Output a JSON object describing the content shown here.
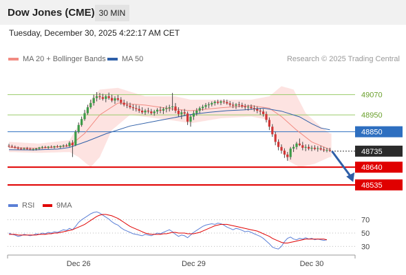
{
  "header": {
    "title": "Dow Jones (CME)",
    "timeframe": "30 MIN"
  },
  "timestamp": "Tuesday, December 30, 2025 4:22:17 AM CET",
  "legend": {
    "ma20_label": "MA 20 + Bollinger Bands",
    "ma50_label": "MA 50",
    "ma20_color": "#f28b82",
    "ma50_color": "#2e5fa8"
  },
  "credit": "Research © 2025 Trading Central",
  "rsi_legend": {
    "rsi_label": "RSI",
    "ma_label": "9MA",
    "rsi_color": "#5b7fd6",
    "ma_color": "#e00000"
  },
  "levels": [
    {
      "value": 49070,
      "label": "49070",
      "style": "green-line"
    },
    {
      "value": 48950,
      "label": "48950",
      "style": "green-line"
    },
    {
      "value": 48850,
      "label": "48850",
      "style": "blue-box"
    },
    {
      "value": 48735,
      "label": "48735",
      "style": "dark-box"
    },
    {
      "value": 48640,
      "label": "48640",
      "style": "red-box"
    },
    {
      "value": 48535,
      "label": "48535",
      "style": "red-box"
    }
  ],
  "chart_data": [
    {
      "type": "candlestick",
      "ylim": [
        48490,
        49150
      ],
      "x_labels": [
        "Dec 26",
        "Dec 29",
        "Dec 30"
      ],
      "ohlc": [
        [
          48767,
          48778,
          48757,
          48766
        ],
        [
          48764,
          48773,
          48755,
          48760
        ],
        [
          48760,
          48768,
          48750,
          48755
        ],
        [
          48755,
          48763,
          48744,
          48750
        ],
        [
          48750,
          48758,
          48742,
          48748
        ],
        [
          48749,
          48757,
          48741,
          48752
        ],
        [
          48751,
          48760,
          48743,
          48749
        ],
        [
          48748,
          48756,
          48740,
          48745
        ],
        [
          48745,
          48753,
          48738,
          48747
        ],
        [
          48746,
          48755,
          48739,
          48750
        ],
        [
          48750,
          48760,
          48743,
          48757
        ],
        [
          48757,
          48766,
          48749,
          48760
        ],
        [
          48759,
          48767,
          48751,
          48755
        ],
        [
          48756,
          48765,
          48748,
          48762
        ],
        [
          48761,
          48769,
          48753,
          48758
        ],
        [
          48758,
          48767,
          48750,
          48764
        ],
        [
          48763,
          48772,
          48755,
          48760
        ],
        [
          48760,
          48769,
          48752,
          48766
        ],
        [
          48766,
          48775,
          48757,
          48769
        ],
        [
          48769,
          48778,
          48760,
          48765
        ],
        [
          48765,
          48794,
          48760,
          48785
        ],
        [
          48785,
          48800,
          48700,
          48770
        ],
        [
          48770,
          48860,
          48765,
          48850
        ],
        [
          48850,
          48905,
          48840,
          48890
        ],
        [
          48890,
          48940,
          48880,
          48925
        ],
        [
          48925,
          48980,
          48915,
          48960
        ],
        [
          48960,
          49010,
          48950,
          48995
        ],
        [
          48995,
          49040,
          48985,
          49020
        ],
        [
          49020,
          49070,
          49005,
          49050
        ],
        [
          49050,
          49085,
          49030,
          49060
        ],
        [
          49060,
          49080,
          49040,
          49055
        ],
        [
          49055,
          49075,
          49035,
          49045
        ],
        [
          49045,
          49070,
          49025,
          49060
        ],
        [
          49060,
          49082,
          49040,
          49050
        ],
        [
          49050,
          49070,
          49025,
          49035
        ],
        [
          49035,
          49060,
          49015,
          49048
        ],
        [
          49048,
          49068,
          49030,
          49040
        ],
        [
          49040,
          49055,
          49010,
          49022
        ],
        [
          49022,
          49040,
          49000,
          49010
        ],
        [
          49010,
          49030,
          48990,
          49005
        ],
        [
          49005,
          49022,
          48985,
          48995
        ],
        [
          48995,
          49012,
          48975,
          48990
        ],
        [
          48990,
          49010,
          48970,
          48985
        ],
        [
          48985,
          49005,
          48962,
          48975
        ],
        [
          48975,
          48995,
          48955,
          48965
        ],
        [
          48965,
          48985,
          48950,
          48975
        ],
        [
          48975,
          48992,
          48958,
          48970
        ],
        [
          48970,
          48985,
          48950,
          48960
        ],
        [
          48960,
          48980,
          48945,
          48970
        ],
        [
          48970,
          48990,
          48955,
          48980
        ],
        [
          48980,
          48998,
          48960,
          48975
        ],
        [
          48975,
          48995,
          48955,
          48985
        ],
        [
          48985,
          49005,
          48965,
          48990
        ],
        [
          48990,
          49010,
          48970,
          48995
        ],
        [
          48995,
          49080,
          48975,
          49000
        ],
        [
          49000,
          49020,
          48960,
          48975
        ],
        [
          48975,
          48995,
          48940,
          48955
        ],
        [
          48955,
          48980,
          48925,
          48965
        ],
        [
          48965,
          48985,
          48945,
          48958
        ],
        [
          48958,
          48970,
          48890,
          48910
        ],
        [
          48910,
          48950,
          48880,
          48940
        ],
        [
          48940,
          48975,
          48920,
          48960
        ],
        [
          48960,
          48990,
          48945,
          48975
        ],
        [
          48975,
          49000,
          48960,
          48990
        ],
        [
          48990,
          49010,
          48975,
          48998
        ],
        [
          48998,
          49020,
          48985,
          49008
        ],
        [
          49008,
          49025,
          48990,
          49012
        ],
        [
          49012,
          49030,
          49000,
          49020
        ],
        [
          49020,
          49036,
          49005,
          49028
        ],
        [
          49028,
          49040,
          49012,
          49022
        ],
        [
          49022,
          49038,
          49008,
          49030
        ],
        [
          49030,
          49042,
          49015,
          49026
        ],
        [
          49026,
          49040,
          49010,
          49018
        ],
        [
          49018,
          49032,
          49000,
          49010
        ],
        [
          49010,
          49025,
          48990,
          49005
        ],
        [
          49005,
          49020,
          48985,
          49012
        ],
        [
          49012,
          49028,
          48995,
          49008
        ],
        [
          49008,
          49022,
          48990,
          49000
        ],
        [
          49000,
          49015,
          48980,
          48995
        ],
        [
          48995,
          49010,
          48975,
          48998
        ],
        [
          48998,
          49012,
          48980,
          48990
        ],
        [
          48990,
          49006,
          48970,
          48985
        ],
        [
          48985,
          49000,
          48960,
          48975
        ],
        [
          48975,
          48990,
          48950,
          48970
        ],
        [
          48970,
          48985,
          48940,
          48955
        ],
        [
          48955,
          48970,
          48905,
          48920
        ],
        [
          48920,
          48935,
          48860,
          48880
        ],
        [
          48880,
          48895,
          48820,
          48835
        ],
        [
          48835,
          48850,
          48770,
          48790
        ],
        [
          48790,
          48805,
          48740,
          48760
        ],
        [
          48760,
          48775,
          48720,
          48738
        ],
        [
          48738,
          48752,
          48695,
          48715
        ],
        [
          48715,
          48730,
          48678,
          48700
        ],
        [
          48700,
          48760,
          48685,
          48750
        ],
        [
          48750,
          48775,
          48730,
          48760
        ],
        [
          48760,
          48790,
          48745,
          48780
        ],
        [
          48780,
          48810,
          48765,
          48770
        ],
        [
          48770,
          48790,
          48740,
          48755
        ],
        [
          48755,
          48775,
          48735,
          48760
        ],
        [
          48760,
          48775,
          48740,
          48750
        ],
        [
          48750,
          48768,
          48735,
          48755
        ],
        [
          48755,
          48770,
          48740,
          48748
        ],
        [
          48748,
          48765,
          48732,
          48752
        ],
        [
          48752,
          48768,
          48738,
          48745
        ],
        [
          48745,
          48760,
          48730,
          48740
        ],
        [
          48740,
          48755,
          48728,
          48742
        ],
        [
          48742,
          48755,
          48730,
          48737
        ]
      ],
      "ma20": [
        [
          0,
          48757
        ],
        [
          10,
          48752
        ],
        [
          20,
          48766
        ],
        [
          25,
          48840
        ],
        [
          30,
          48950
        ],
        [
          36,
          49020
        ],
        [
          45,
          49008
        ],
        [
          54,
          48985
        ],
        [
          60,
          48975
        ],
        [
          70,
          48992
        ],
        [
          80,
          49005
        ],
        [
          86,
          48990
        ],
        [
          90,
          48940
        ],
        [
          95,
          48860
        ],
        [
          100,
          48790
        ],
        [
          106,
          48745
        ]
      ],
      "boll_upper": [
        [
          0,
          48790
        ],
        [
          10,
          48780
        ],
        [
          20,
          48800
        ],
        [
          24,
          48920
        ],
        [
          27,
          49040
        ],
        [
          30,
          49100
        ],
        [
          36,
          49110
        ],
        [
          45,
          49060
        ],
        [
          55,
          49060
        ],
        [
          60,
          49040
        ],
        [
          70,
          49040
        ],
        [
          80,
          49040
        ],
        [
          86,
          49060
        ],
        [
          90,
          49120
        ],
        [
          94,
          49100
        ],
        [
          98,
          48960
        ],
        [
          103,
          48880
        ],
        [
          106,
          48840
        ]
      ],
      "boll_lower": [
        [
          0,
          48730
        ],
        [
          10,
          48725
        ],
        [
          20,
          48730
        ],
        [
          23,
          48700
        ],
        [
          27,
          48640
        ],
        [
          30,
          48700
        ],
        [
          34,
          48860
        ],
        [
          40,
          48950
        ],
        [
          55,
          48915
        ],
        [
          60,
          48900
        ],
        [
          70,
          48930
        ],
        [
          80,
          48940
        ],
        [
          86,
          48920
        ],
        [
          88,
          48830
        ],
        [
          92,
          48680
        ],
        [
          96,
          48640
        ],
        [
          101,
          48660
        ],
        [
          106,
          48700
        ]
      ],
      "ma50": [
        [
          0,
          48744
        ],
        [
          8,
          48742
        ],
        [
          16,
          48747
        ],
        [
          20,
          48757
        ],
        [
          26,
          48795
        ],
        [
          32,
          48838
        ],
        [
          40,
          48884
        ],
        [
          50,
          48918
        ],
        [
          60,
          48952
        ],
        [
          66,
          48965
        ],
        [
          72,
          48975
        ],
        [
          78,
          48980
        ],
        [
          84,
          48990
        ],
        [
          90,
          48972
        ],
        [
          96,
          48938
        ],
        [
          100,
          48898
        ],
        [
          103,
          48872
        ],
        [
          106,
          48862
        ]
      ],
      "forecast_arrow": [
        [
          106,
          48735
        ],
        [
          113,
          48552
        ]
      ]
    },
    {
      "type": "line",
      "name": "RSI",
      "ylim": [
        20,
        80
      ],
      "y_ticks": [
        70,
        50,
        30
      ],
      "series": [
        {
          "name": "RSI",
          "values": [
            50,
            48,
            47,
            45,
            46,
            48,
            47,
            46,
            47,
            49,
            48,
            50,
            49,
            51,
            50,
            52,
            51,
            53,
            55,
            54,
            57,
            55,
            60,
            66,
            70,
            73,
            76,
            79,
            81,
            82,
            80,
            77,
            74,
            71,
            67,
            64,
            62,
            58,
            55,
            53,
            51,
            49,
            48,
            47,
            46,
            48,
            47,
            46,
            48,
            50,
            49,
            51,
            53,
            55,
            52,
            48,
            45,
            47,
            46,
            43,
            47,
            51,
            54,
            57,
            60,
            62,
            63,
            64,
            63,
            65,
            64,
            62,
            59,
            57,
            55,
            57,
            56,
            54,
            52,
            53,
            51,
            49,
            47,
            45,
            42,
            38,
            34,
            29,
            27,
            26,
            30,
            37,
            42,
            44,
            41,
            40,
            42,
            41,
            43,
            41,
            42,
            40,
            41,
            40,
            39,
            40
          ]
        },
        {
          "name": "9MA",
          "values": [
            48,
            48,
            48,
            47,
            47,
            47,
            47,
            47,
            47,
            47,
            48,
            48,
            48,
            49,
            49,
            50,
            50,
            51,
            52,
            53,
            54,
            55,
            57,
            59,
            61,
            63,
            66,
            69,
            72,
            75,
            77,
            78,
            78,
            77,
            76,
            74,
            72,
            69,
            66,
            63,
            60,
            58,
            56,
            54,
            52,
            50,
            49,
            48,
            48,
            48,
            48,
            49,
            49,
            50,
            51,
            51,
            50,
            50,
            50,
            49,
            49,
            49,
            50,
            51,
            53,
            55,
            57,
            59,
            61,
            62,
            63,
            63,
            63,
            62,
            61,
            60,
            59,
            58,
            57,
            56,
            55,
            54,
            53,
            51,
            49,
            47,
            45,
            42,
            40,
            38,
            36,
            35,
            35,
            36,
            37,
            38,
            39,
            40,
            41,
            41,
            41,
            41,
            41,
            41,
            41,
            40
          ]
        }
      ]
    }
  ]
}
